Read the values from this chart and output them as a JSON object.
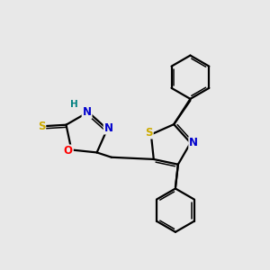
{
  "background_color": "#e8e8e8",
  "bond_color": "#000000",
  "atom_colors": {
    "N": "#0000cc",
    "O": "#ff0000",
    "S_thiol": "#ccaa00",
    "S_thiazole": "#ccaa00",
    "H": "#008080",
    "C": "#000000"
  },
  "figsize": [
    3.0,
    3.0
  ],
  "dpi": 100
}
